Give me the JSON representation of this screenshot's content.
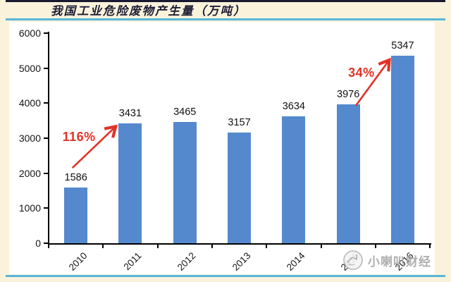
{
  "header": {
    "title": "我国工业危险废物产生量（万吨）"
  },
  "chart_data": {
    "type": "bar",
    "title": "我国工业危险废物产生量（万吨）",
    "categories": [
      "2010",
      "2011",
      "2012",
      "2013",
      "2014",
      "2015",
      "2016"
    ],
    "values": [
      1586,
      3431,
      3465,
      3157,
      3634,
      3976,
      5347
    ],
    "xlabel": "",
    "ylabel": "",
    "ylim": [
      0,
      6000
    ],
    "yticks": [
      0,
      1000,
      2000,
      3000,
      4000,
      5000,
      6000
    ],
    "grid": false,
    "legend": null,
    "bar_color": "#5589ce",
    "axis_color": "#000000",
    "annotations": [
      {
        "label": "116%",
        "from": "2010",
        "to": "2011",
        "color": "#e23227"
      },
      {
        "label": "34%",
        "from": "2015",
        "to": "2016",
        "color": "#e23227"
      }
    ]
  },
  "watermark": {
    "text": "小喇叭财经",
    "icon": "megaphone-icon"
  },
  "colors": {
    "page_bg": "#fbf2dc",
    "panel_bg": "#ffffff",
    "rule_blue": "#57b7d9",
    "top_bar": "#191930",
    "watermark_gray": "#a9a9a9"
  }
}
